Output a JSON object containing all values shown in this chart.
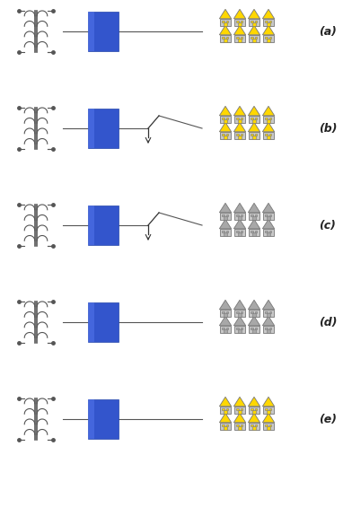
{
  "rows": [
    {
      "label": "(a)",
      "open_switch": false,
      "houses_yellow": true
    },
    {
      "label": "(b)",
      "open_switch": true,
      "houses_yellow": true
    },
    {
      "label": "(c)",
      "open_switch": true,
      "houses_yellow": false
    },
    {
      "label": "(d)",
      "open_switch": false,
      "houses_yellow": false
    },
    {
      "label": "(e)",
      "open_switch": false,
      "houses_yellow": true
    }
  ],
  "blue_color": "#3355cc",
  "house_yellow": "#FFD700",
  "house_gray_roof": "#a8a8a8",
  "house_wall": "#c8c8c8",
  "line_color": "#555555",
  "switch_color": "#333333",
  "coil_color": "#555555",
  "label_fontsize": 9,
  "background": "#ffffff",
  "fig_width": 3.82,
  "fig_height": 5.75
}
